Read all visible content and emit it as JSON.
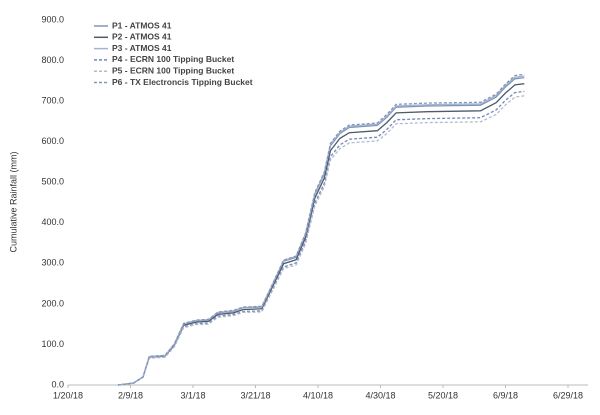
{
  "chart_data": {
    "type": "line",
    "y_label": "Cumulative Rainfall (mm)",
    "x": [
      "2/5/18",
      "2/10/18",
      "2/13/18",
      "2/15/18",
      "2/20/18",
      "2/23/18",
      "2/26/18",
      "3/2/18",
      "3/6/18",
      "3/9/18",
      "3/14/18",
      "3/17/18",
      "3/23/18",
      "3/26/18",
      "3/30/18",
      "4/3/18",
      "4/6/18",
      "4/9/18",
      "4/12/18",
      "4/14/18",
      "4/17/18",
      "4/20/18",
      "4/29/18",
      "5/2/18",
      "5/5/18",
      "5/15/18",
      "6/1/18",
      "6/6/18",
      "6/9/18",
      "6/12/18",
      "6/15/18"
    ],
    "series": [
      {
        "name": "P1 - ATMOS 41",
        "color": "#7f95b5",
        "dash": false,
        "values": [
          0,
          5,
          20,
          70,
          72,
          100,
          150,
          158,
          160,
          178,
          182,
          190,
          192,
          240,
          305,
          315,
          370,
          470,
          520,
          590,
          620,
          635,
          640,
          660,
          685,
          688,
          690,
          710,
          735,
          755,
          758
        ]
      },
      {
        "name": "P2 - ATMOS 41",
        "color": "#4d5b6b",
        "dash": false,
        "values": [
          0,
          5,
          20,
          69,
          71,
          98,
          147,
          155,
          157,
          174,
          178,
          186,
          188,
          235,
          299,
          309,
          363,
          461,
          510,
          578,
          608,
          622,
          627,
          647,
          671,
          674,
          676,
          696,
          720,
          740,
          743
        ]
      },
      {
        "name": "P3 - ATMOS 41",
        "color": "#a3b3d3",
        "dash": false,
        "values": [
          0,
          5,
          20,
          70,
          72,
          101,
          151,
          159,
          161,
          179,
          183,
          191,
          193,
          241,
          307,
          317,
          372,
          472,
          523,
          593,
          623,
          638,
          643,
          663,
          688,
          691,
          693,
          714,
          739,
          759,
          762
        ]
      },
      {
        "name": "P4 - ECRN 100 Tipping Bucket",
        "color": "#7487bd",
        "dash": true,
        "values": [
          0,
          5,
          19,
          67,
          69,
          96,
          143,
          151,
          153,
          170,
          174,
          181,
          183,
          229,
          291,
          301,
          353,
          449,
          497,
          563,
          592,
          606,
          611,
          630,
          654,
          657,
          659,
          678,
          702,
          721,
          724
        ]
      },
      {
        "name": "P5 - ECRN 100 Tipping Bucket",
        "color": "#b3bbcb",
        "dash": true,
        "values": [
          0,
          5,
          19,
          66,
          68,
          94,
          141,
          149,
          150,
          167,
          171,
          179,
          180,
          226,
          287,
          296,
          348,
          442,
          489,
          555,
          583,
          597,
          602,
          620,
          644,
          647,
          649,
          667,
          691,
          710,
          713
        ]
      },
      {
        "name": "P6 - TX Electroncis Tipping Bucket",
        "color": "#8595b8",
        "dash": true,
        "values": [
          0,
          5,
          20,
          71,
          73,
          101,
          152,
          160,
          162,
          180,
          184,
          192,
          194,
          242,
          308,
          318,
          374,
          475,
          525,
          596,
          626,
          641,
          646,
          667,
          692,
          695,
          697,
          717,
          742,
          763,
          766
        ]
      }
    ],
    "xlim": [
      "1/20/18",
      "6/29/18"
    ],
    "xticks": [
      "1/20/18",
      "2/9/18",
      "3/1/18",
      "3/21/18",
      "4/10/18",
      "4/30/18",
      "5/20/18",
      "6/9/18",
      "6/29/18"
    ],
    "ylim": [
      0,
      900
    ],
    "yticks": [
      {
        "value": 0,
        "label": "0.0"
      },
      {
        "value": 100,
        "label": "100.0"
      },
      {
        "value": 200,
        "label": "200.0"
      },
      {
        "value": 300,
        "label": "300.0"
      },
      {
        "value": 400,
        "label": "400.0"
      },
      {
        "value": 500,
        "label": "500.0"
      },
      {
        "value": 600,
        "label": "600.0"
      },
      {
        "value": 700,
        "label": "700.0"
      },
      {
        "value": 800,
        "label": "800.0"
      },
      {
        "value": 900,
        "label": "900.0"
      }
    ]
  }
}
